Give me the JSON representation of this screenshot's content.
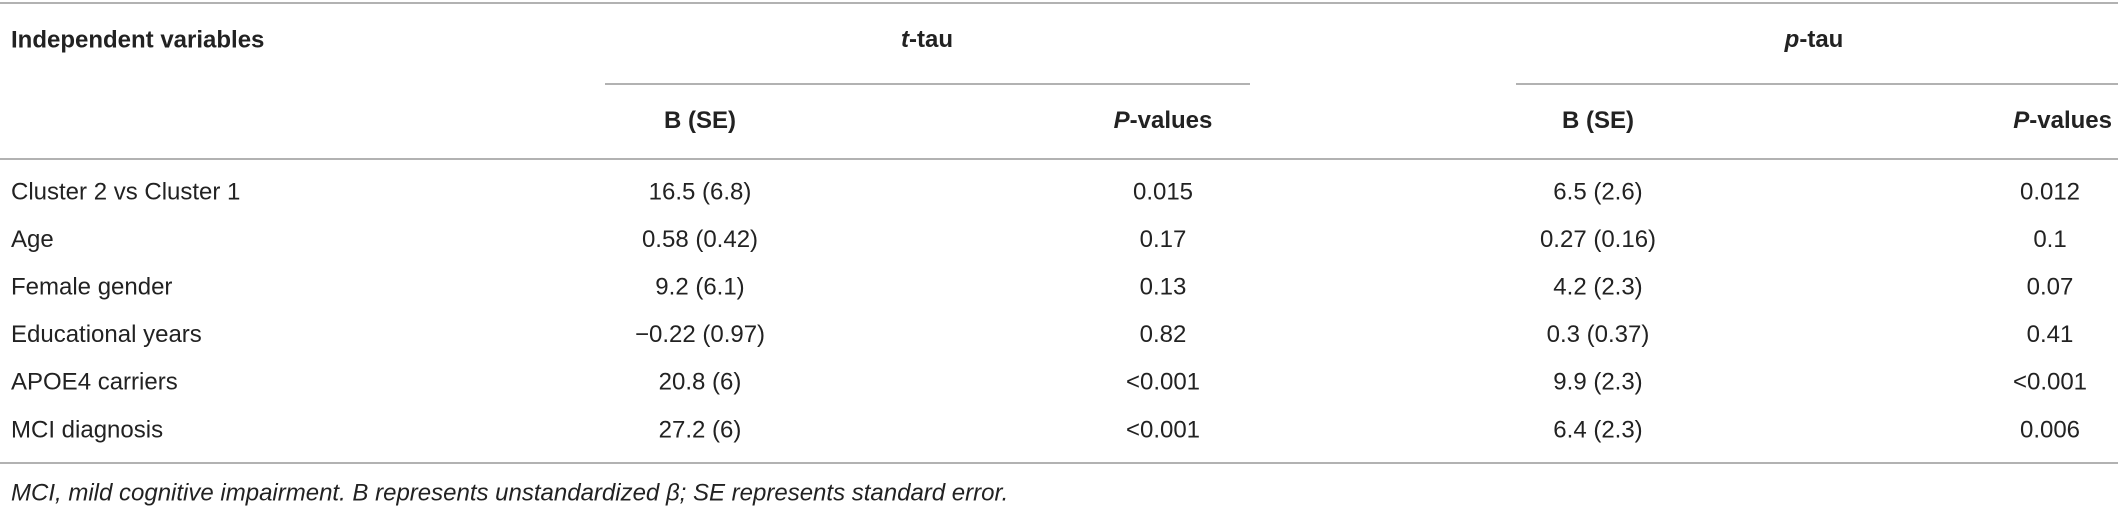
{
  "table": {
    "header": {
      "first": "Independent variables",
      "groups": [
        {
          "italic": "t",
          "rest": "-tau"
        },
        {
          "italic": "p",
          "rest": "-tau"
        }
      ],
      "subheaders": [
        {
          "italic": "",
          "rest": "B (SE)"
        },
        {
          "italic": "P",
          "rest": "-values"
        },
        {
          "italic": "",
          "rest": "B (SE)"
        },
        {
          "italic": "P",
          "rest": "-values"
        }
      ]
    },
    "rows": [
      [
        "Cluster 2 vs Cluster 1",
        "16.5 (6.8)",
        "0.015",
        "6.5 (2.6)",
        "0.012"
      ],
      [
        "Age",
        "0.58 (0.42)",
        "0.17",
        "0.27 (0.16)",
        "0.1"
      ],
      [
        "Female gender",
        "9.2 (6.1)",
        "0.13",
        "4.2 (2.3)",
        "0.07"
      ],
      [
        "Educational years",
        "−0.22 (0.97)",
        "0.82",
        "0.3 (0.37)",
        "0.41"
      ],
      [
        "APOE4 carriers",
        "20.8 (6)",
        "<0.001",
        "9.9 (2.3)",
        "<0.001"
      ],
      [
        "MCI diagnosis",
        "27.2 (6)",
        "<0.001",
        "6.4 (2.3)",
        "0.006"
      ]
    ],
    "footnote": "MCI, mild cognitive impairment. B represents unstandardized β; SE represents standard error."
  }
}
